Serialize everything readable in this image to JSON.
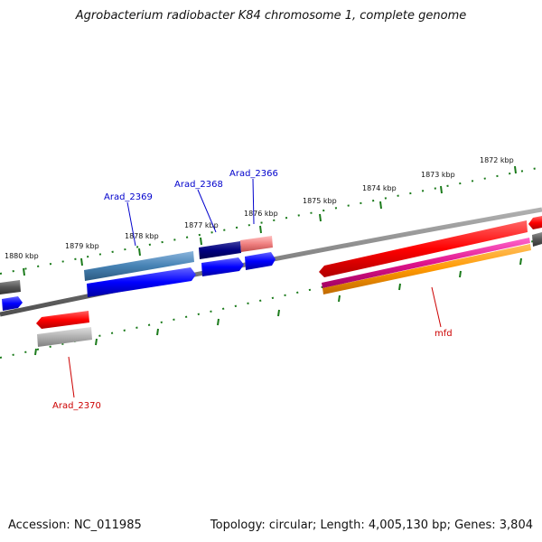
{
  "title": "Agrobacterium radiobacter K84 chromosome 1, complete genome",
  "accession": "Accession: NC_011985",
  "topology": "Topology: circular; Length: 4,005,130 bp; Genes: 3,804",
  "ticks": [
    "1872 kbp",
    "1873 kbp",
    "1874 kbp",
    "1875 kbp",
    "1876 kbp",
    "1877 kbp",
    "1878 kbp",
    "1879 kbp",
    "1880 kbp"
  ],
  "genes": [
    {
      "name": "Arad_2366",
      "color": "#0000cc"
    },
    {
      "name": "Arad_2368",
      "color": "#0000cc"
    },
    {
      "name": "Arad_2369",
      "color": "#0000cc"
    },
    {
      "name": "Arad_2370",
      "color": "#cc0000"
    },
    {
      "name": "mfd",
      "color": "#cc0000"
    }
  ],
  "colors": {
    "backbone": "#808080",
    "ticks": "#1a7a1a",
    "forward_cds": "#0000ff",
    "reverse_cds": "#ff0000"
  }
}
